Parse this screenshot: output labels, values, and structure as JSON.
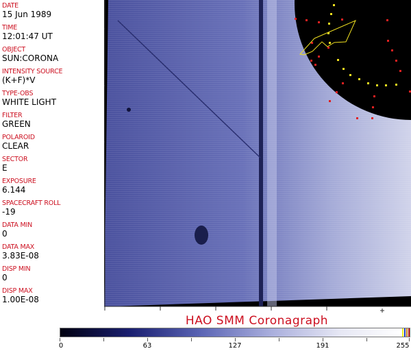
{
  "fields": [
    {
      "label": "DATE",
      "value": "15 Jun 1989"
    },
    {
      "label": "TIME",
      "value": "12:01:47 UT"
    },
    {
      "label": "OBJECT",
      "value": "SUN:CORONA"
    },
    {
      "label": "INTENSITY SOURCE",
      "value": "(K+F)*V"
    },
    {
      "label": "TYPE-OBS",
      "value": "WHITE LIGHT"
    },
    {
      "label": "FILTER",
      "value": "GREEN"
    },
    {
      "label": "POLAROID",
      "value": "CLEAR"
    },
    {
      "label": "SECTOR",
      "value": "E"
    },
    {
      "label": "EXPOSURE",
      "value": "6.144"
    },
    {
      "label": "SPACECRAFT ROLL",
      "value": "-19"
    },
    {
      "label": "DATA MIN",
      "value": "0"
    },
    {
      "label": "DATA MAX",
      "value": "3.83E-08"
    },
    {
      "label": "DISP MIN",
      "value": "0"
    },
    {
      "label": "DISP MAX",
      "value": "1.00E-08"
    }
  ],
  "title": "HAO  SMM  Coronagraph",
  "colorbar": {
    "ticks": [
      "0",
      "63",
      "127",
      "191",
      "255"
    ],
    "end_colors": [
      "#f0f020",
      "#2040c0",
      "#c08020",
      "#c02020"
    ]
  },
  "colors": {
    "label": "#cc1020",
    "image_base": "#5a62b0",
    "occulter": "#000000"
  }
}
